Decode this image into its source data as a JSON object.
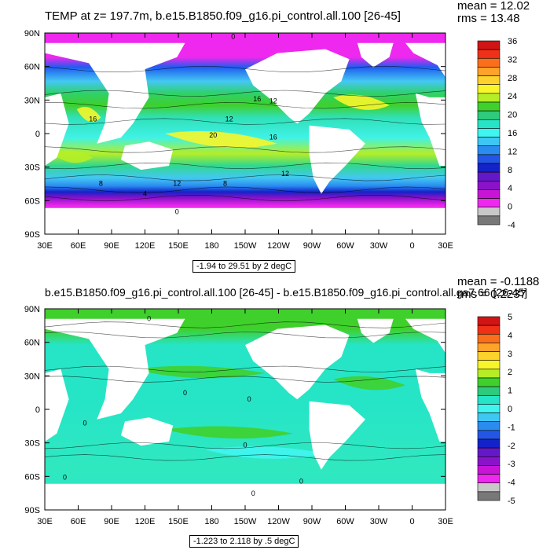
{
  "chart_data": [
    {
      "type": "heatmap",
      "title": "TEMP at z= 197.7m, b.e15.B1850.f09_g16.pi_control.all.100 [26-45]",
      "stats": {
        "mean": "mean = 12.02",
        "rms": "rms = 13.48"
      },
      "range_caption": "-1.94 to 29.51 by 2 degC",
      "x_ticks": [
        "30E",
        "60E",
        "90E",
        "120E",
        "150E",
        "180",
        "150W",
        "120W",
        "90W",
        "60W",
        "30W",
        "0",
        "30E"
      ],
      "y_ticks": [
        "90N",
        "60N",
        "30N",
        "0",
        "30S",
        "60S",
        "90S"
      ],
      "colorbar": {
        "labels": [
          "36",
          "32",
          "28",
          "24",
          "20",
          "16",
          "12",
          "8",
          "4",
          "0",
          "-4"
        ],
        "colors": [
          "#d11414",
          "#f03018",
          "#fa6e1c",
          "#fda32a",
          "#fdd22c",
          "#f6f62a",
          "#b5ee27",
          "#3fd02c",
          "#2ecb7c",
          "#26e5c6",
          "#40f5f0",
          "#3fc7f4",
          "#2b8cf0",
          "#2356e6",
          "#1422c9",
          "#6418c9",
          "#8a12c8",
          "#c814d6",
          "#ee28ee",
          "#c8c8c8",
          "#787878"
        ]
      },
      "contour_labels": [
        "0",
        "16",
        "12",
        "16",
        "12",
        "20",
        "16",
        "12",
        "8",
        "4",
        "8",
        "12",
        "0"
      ]
    },
    {
      "type": "heatmap",
      "title": "b.e15.B1850.f09_g16.pi_control.all.100 [26-45] - b.e15.B1850.f09_g16.pi_control.all.ga7.66 [26-45]",
      "stats": {
        "mean": "mean = -0.1188",
        "rms": "rms = 0.2237"
      },
      "range_caption": "-1.223 to 2.118 by .5 degC",
      "x_ticks": [
        "30E",
        "60E",
        "90E",
        "120E",
        "150E",
        "180",
        "150W",
        "120W",
        "90W",
        "60W",
        "30W",
        "0",
        "30E"
      ],
      "y_ticks": [
        "90N",
        "60N",
        "30N",
        "0",
        "30S",
        "60S",
        "90S"
      ],
      "colorbar": {
        "labels": [
          "5",
          "4",
          "3",
          "2",
          "1",
          "0",
          "-1",
          "-2",
          "-3",
          "-4",
          "-5"
        ],
        "colors": [
          "#d11414",
          "#f03018",
          "#fa6e1c",
          "#fda32a",
          "#fdd22c",
          "#f6f62a",
          "#b5ee27",
          "#3fd02c",
          "#2ecb7c",
          "#26e5c6",
          "#40f5f0",
          "#3fc7f4",
          "#2b8cf0",
          "#2356e6",
          "#1422c9",
          "#6418c9",
          "#8a12c8",
          "#c814d6",
          "#ee28ee",
          "#c8c8c8",
          "#787878"
        ]
      },
      "contour_labels": [
        "0",
        "0",
        "0",
        "0",
        "0",
        "0",
        "0",
        "0"
      ]
    }
  ]
}
